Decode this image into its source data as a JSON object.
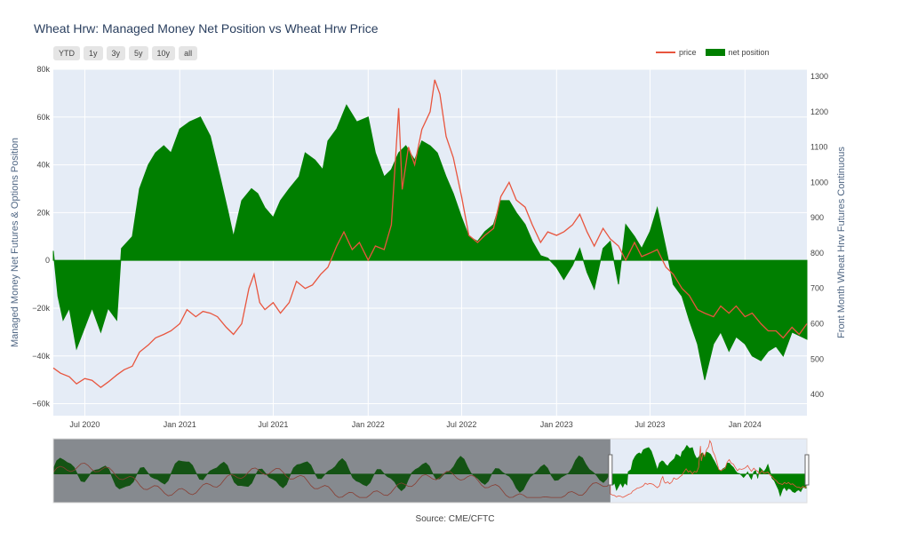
{
  "title": "Wheat Hrw: Managed Money Net Position vs Wheat Hrw Price",
  "range_buttons": [
    "YTD",
    "1y",
    "3y",
    "5y",
    "10y",
    "all"
  ],
  "legend": [
    {
      "name": "price",
      "color": "#e8553e"
    },
    {
      "name": "net position",
      "color": "#007f00"
    }
  ],
  "source": "Source: CME/CFTC",
  "colors": {
    "plot_bg": "#e5ecf6",
    "price": "#e8553e",
    "net": "#007f00",
    "grid": "#ffffff"
  },
  "chart_data": {
    "type": "area",
    "x_axis": {
      "ticks": [
        {
          "label": "Jul 2020",
          "date": "2020-07-01"
        },
        {
          "label": "Jan 2021",
          "date": "2021-01-01"
        },
        {
          "label": "Jul 2021",
          "date": "2021-07-01"
        },
        {
          "label": "Jan 2022",
          "date": "2022-01-01"
        },
        {
          "label": "Jul 2022",
          "date": "2022-07-01"
        },
        {
          "label": "Jan 2023",
          "date": "2023-01-01"
        },
        {
          "label": "Jul 2023",
          "date": "2023-07-01"
        },
        {
          "label": "Jan 2024",
          "date": "2024-01-01"
        }
      ],
      "range": [
        "2020-05-01",
        "2024-04-30"
      ]
    },
    "y_left": {
      "title": "Managed Money Net Futures & Options Position",
      "range": [
        -65000,
        80000
      ],
      "ticks": [
        80000,
        60000,
        40000,
        20000,
        0,
        -20000,
        -40000,
        -60000
      ],
      "tick_labels": [
        "80k",
        "60k",
        "40k",
        "20k",
        "0",
        "−20k",
        "−40k",
        "−60k"
      ]
    },
    "y_right": {
      "title": "Front Month Wheat Hrw Futures Continuous",
      "range": [
        340,
        1320
      ],
      "ticks": [
        1300,
        1200,
        1100,
        1000,
        900,
        800,
        700,
        600,
        500,
        400
      ]
    },
    "series": [
      {
        "name": "net position",
        "axis": "left",
        "points": [
          [
            "2020-05-01",
            4000
          ],
          [
            "2020-05-10",
            -15000
          ],
          [
            "2020-05-20",
            -25000
          ],
          [
            "2020-06-01",
            -20000
          ],
          [
            "2020-06-15",
            -37000
          ],
          [
            "2020-07-01",
            -28000
          ],
          [
            "2020-07-15",
            -20000
          ],
          [
            "2020-08-01",
            -30000
          ],
          [
            "2020-08-15",
            -20000
          ],
          [
            "2020-09-01",
            -25000
          ],
          [
            "2020-09-10",
            5000
          ],
          [
            "2020-10-01",
            10000
          ],
          [
            "2020-10-15",
            30000
          ],
          [
            "2020-11-01",
            40000
          ],
          [
            "2020-11-15",
            45000
          ],
          [
            "2020-12-01",
            48000
          ],
          [
            "2020-12-15",
            45000
          ],
          [
            "2021-01-01",
            55000
          ],
          [
            "2021-01-20",
            58000
          ],
          [
            "2021-02-10",
            60000
          ],
          [
            "2021-03-01",
            52000
          ],
          [
            "2021-03-20",
            35000
          ],
          [
            "2021-04-05",
            20000
          ],
          [
            "2021-04-15",
            10000
          ],
          [
            "2021-05-01",
            25000
          ],
          [
            "2021-05-20",
            30000
          ],
          [
            "2021-06-01",
            28000
          ],
          [
            "2021-06-15",
            22000
          ],
          [
            "2021-07-01",
            18000
          ],
          [
            "2021-07-15",
            25000
          ],
          [
            "2021-08-01",
            30000
          ],
          [
            "2021-08-20",
            35000
          ],
          [
            "2021-09-01",
            45000
          ],
          [
            "2021-09-20",
            42000
          ],
          [
            "2021-10-05",
            38000
          ],
          [
            "2021-10-15",
            50000
          ],
          [
            "2021-11-01",
            55000
          ],
          [
            "2021-11-20",
            65000
          ],
          [
            "2021-12-10",
            58000
          ],
          [
            "2022-01-01",
            60000
          ],
          [
            "2022-01-15",
            45000
          ],
          [
            "2022-02-01",
            35000
          ],
          [
            "2022-02-15",
            38000
          ],
          [
            "2022-03-01",
            45000
          ],
          [
            "2022-03-15",
            48000
          ],
          [
            "2022-04-01",
            42000
          ],
          [
            "2022-04-15",
            50000
          ],
          [
            "2022-05-01",
            48000
          ],
          [
            "2022-05-15",
            45000
          ],
          [
            "2022-06-01",
            35000
          ],
          [
            "2022-06-15",
            28000
          ],
          [
            "2022-07-01",
            18000
          ],
          [
            "2022-07-15",
            10000
          ],
          [
            "2022-08-01",
            8000
          ],
          [
            "2022-08-15",
            12000
          ],
          [
            "2022-09-01",
            15000
          ],
          [
            "2022-09-15",
            25000
          ],
          [
            "2022-10-01",
            25000
          ],
          [
            "2022-10-15",
            20000
          ],
          [
            "2022-11-01",
            15000
          ],
          [
            "2022-11-15",
            8000
          ],
          [
            "2022-12-01",
            2000
          ],
          [
            "2022-12-15",
            1000
          ],
          [
            "2023-01-01",
            -3000
          ],
          [
            "2023-01-15",
            -8000
          ],
          [
            "2023-02-01",
            -2000
          ],
          [
            "2023-02-15",
            5000
          ],
          [
            "2023-03-01",
            -5000
          ],
          [
            "2023-03-15",
            -12000
          ],
          [
            "2023-04-01",
            5000
          ],
          [
            "2023-04-15",
            8000
          ],
          [
            "2023-05-01",
            -10000
          ],
          [
            "2023-05-15",
            15000
          ],
          [
            "2023-06-01",
            10000
          ],
          [
            "2023-06-15",
            5000
          ],
          [
            "2023-07-01",
            12000
          ],
          [
            "2023-07-15",
            22000
          ],
          [
            "2023-08-01",
            5000
          ],
          [
            "2023-08-15",
            -10000
          ],
          [
            "2023-09-01",
            -15000
          ],
          [
            "2023-09-15",
            -25000
          ],
          [
            "2023-10-01",
            -35000
          ],
          [
            "2023-10-15",
            -50000
          ],
          [
            "2023-11-01",
            -35000
          ],
          [
            "2023-11-15",
            -30000
          ],
          [
            "2023-12-01",
            -38000
          ],
          [
            "2023-12-15",
            -32000
          ],
          [
            "2024-01-01",
            -35000
          ],
          [
            "2024-01-15",
            -40000
          ],
          [
            "2024-02-01",
            -42000
          ],
          [
            "2024-02-15",
            -38000
          ],
          [
            "2024-03-01",
            -36000
          ],
          [
            "2024-03-15",
            -40000
          ],
          [
            "2024-04-01",
            -30000
          ],
          [
            "2024-04-30",
            -33000
          ]
        ]
      },
      {
        "name": "price",
        "axis": "right",
        "points": [
          [
            "2020-05-01",
            475
          ],
          [
            "2020-05-15",
            460
          ],
          [
            "2020-06-01",
            450
          ],
          [
            "2020-06-15",
            430
          ],
          [
            "2020-07-01",
            445
          ],
          [
            "2020-07-15",
            440
          ],
          [
            "2020-08-01",
            420
          ],
          [
            "2020-08-15",
            435
          ],
          [
            "2020-09-01",
            455
          ],
          [
            "2020-09-15",
            470
          ],
          [
            "2020-10-01",
            480
          ],
          [
            "2020-10-15",
            520
          ],
          [
            "2020-11-01",
            540
          ],
          [
            "2020-11-15",
            560
          ],
          [
            "2020-12-01",
            570
          ],
          [
            "2020-12-15",
            580
          ],
          [
            "2021-01-01",
            600
          ],
          [
            "2021-01-15",
            640
          ],
          [
            "2021-02-01",
            620
          ],
          [
            "2021-02-15",
            635
          ],
          [
            "2021-03-01",
            630
          ],
          [
            "2021-03-15",
            620
          ],
          [
            "2021-04-01",
            590
          ],
          [
            "2021-04-15",
            570
          ],
          [
            "2021-05-01",
            600
          ],
          [
            "2021-05-15",
            700
          ],
          [
            "2021-05-25",
            740
          ],
          [
            "2021-06-05",
            660
          ],
          [
            "2021-06-15",
            640
          ],
          [
            "2021-07-01",
            660
          ],
          [
            "2021-07-15",
            630
          ],
          [
            "2021-08-01",
            660
          ],
          [
            "2021-08-15",
            720
          ],
          [
            "2021-09-01",
            700
          ],
          [
            "2021-09-15",
            710
          ],
          [
            "2021-10-01",
            740
          ],
          [
            "2021-10-15",
            760
          ],
          [
            "2021-11-01",
            820
          ],
          [
            "2021-11-15",
            860
          ],
          [
            "2021-12-01",
            810
          ],
          [
            "2021-12-15",
            830
          ],
          [
            "2022-01-01",
            780
          ],
          [
            "2022-01-15",
            820
          ],
          [
            "2022-02-01",
            810
          ],
          [
            "2022-02-15",
            880
          ],
          [
            "2022-03-01",
            1210
          ],
          [
            "2022-03-08",
            980
          ],
          [
            "2022-03-20",
            1100
          ],
          [
            "2022-04-01",
            1050
          ],
          [
            "2022-04-15",
            1150
          ],
          [
            "2022-05-01",
            1200
          ],
          [
            "2022-05-10",
            1290
          ],
          [
            "2022-05-20",
            1250
          ],
          [
            "2022-06-01",
            1130
          ],
          [
            "2022-06-15",
            1070
          ],
          [
            "2022-07-01",
            960
          ],
          [
            "2022-07-15",
            850
          ],
          [
            "2022-08-01",
            830
          ],
          [
            "2022-08-15",
            850
          ],
          [
            "2022-09-01",
            870
          ],
          [
            "2022-09-15",
            960
          ],
          [
            "2022-10-01",
            1000
          ],
          [
            "2022-10-15",
            950
          ],
          [
            "2022-11-01",
            930
          ],
          [
            "2022-11-15",
            880
          ],
          [
            "2022-12-01",
            830
          ],
          [
            "2022-12-15",
            860
          ],
          [
            "2023-01-01",
            850
          ],
          [
            "2023-01-15",
            860
          ],
          [
            "2023-02-01",
            880
          ],
          [
            "2023-02-15",
            910
          ],
          [
            "2023-03-01",
            860
          ],
          [
            "2023-03-15",
            820
          ],
          [
            "2023-04-01",
            870
          ],
          [
            "2023-04-15",
            840
          ],
          [
            "2023-05-01",
            820
          ],
          [
            "2023-05-15",
            780
          ],
          [
            "2023-06-01",
            830
          ],
          [
            "2023-06-15",
            790
          ],
          [
            "2023-07-01",
            800
          ],
          [
            "2023-07-15",
            810
          ],
          [
            "2023-08-01",
            760
          ],
          [
            "2023-08-15",
            740
          ],
          [
            "2023-09-01",
            700
          ],
          [
            "2023-09-15",
            680
          ],
          [
            "2023-10-01",
            640
          ],
          [
            "2023-10-15",
            630
          ],
          [
            "2023-11-01",
            620
          ],
          [
            "2023-11-15",
            650
          ],
          [
            "2023-12-01",
            630
          ],
          [
            "2023-12-15",
            650
          ],
          [
            "2024-01-01",
            620
          ],
          [
            "2024-01-15",
            630
          ],
          [
            "2024-02-01",
            600
          ],
          [
            "2024-02-15",
            580
          ],
          [
            "2024-03-01",
            580
          ],
          [
            "2024-03-15",
            560
          ],
          [
            "2024-04-01",
            590
          ],
          [
            "2024-04-15",
            570
          ],
          [
            "2024-04-30",
            600
          ]
        ]
      }
    ],
    "rangeslider": {
      "range": [
        "2009-01-01",
        "2024-04-30"
      ],
      "selected": [
        "2020-05-01",
        "2024-04-30"
      ]
    }
  }
}
